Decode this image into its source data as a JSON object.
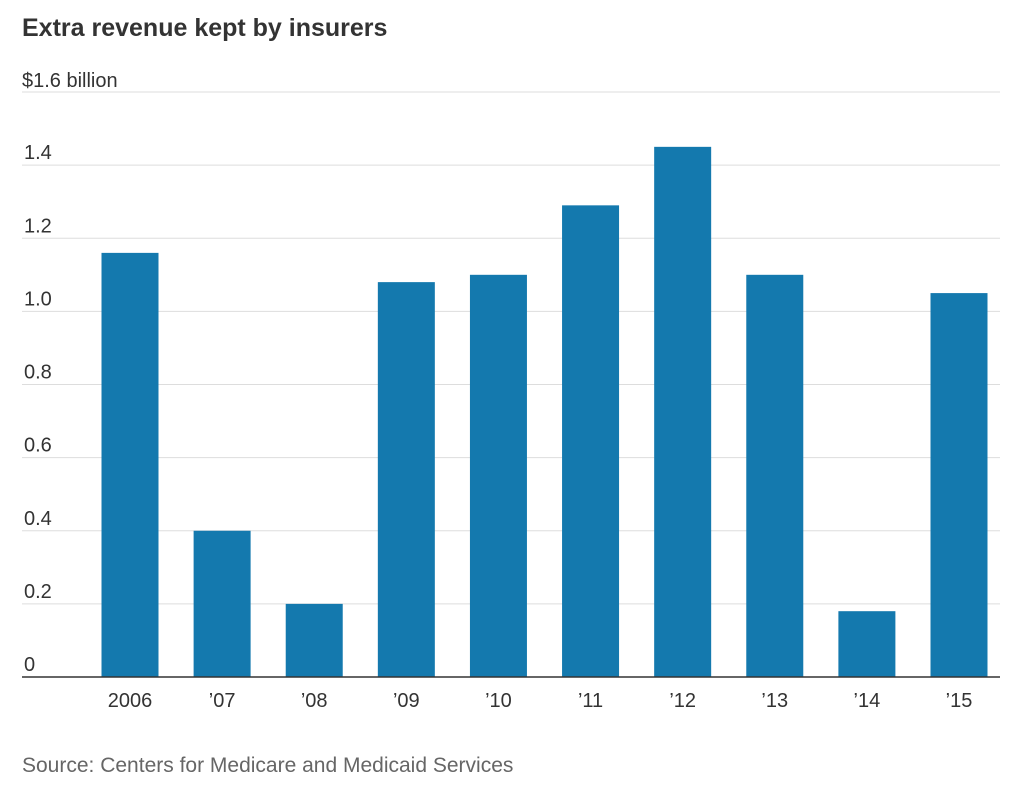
{
  "chart_data": {
    "type": "bar",
    "title": "Extra revenue kept by insurers",
    "y_unit_label": "$1.6 billion",
    "categories": [
      "2006",
      "’07",
      "’08",
      "’09",
      "’10",
      "’11",
      "’12",
      "’13",
      "’14",
      "’15"
    ],
    "values": [
      1.16,
      0.4,
      0.2,
      1.08,
      1.1,
      1.29,
      1.45,
      1.1,
      0.18,
      1.05
    ],
    "ylim": [
      0,
      1.6
    ],
    "y_ticks": [
      {
        "value": 0,
        "label": "0"
      },
      {
        "value": 0.2,
        "label": "0.2"
      },
      {
        "value": 0.4,
        "label": "0.4"
      },
      {
        "value": 0.6,
        "label": "0.6"
      },
      {
        "value": 0.8,
        "label": "0.8"
      },
      {
        "value": 1.0,
        "label": "1.0"
      },
      {
        "value": 1.2,
        "label": "1.2"
      },
      {
        "value": 1.4,
        "label": "1.4"
      }
    ],
    "grid": true,
    "bar_color": "#1479AE",
    "source": "Source: Centers for Medicare and Medicaid Services"
  }
}
